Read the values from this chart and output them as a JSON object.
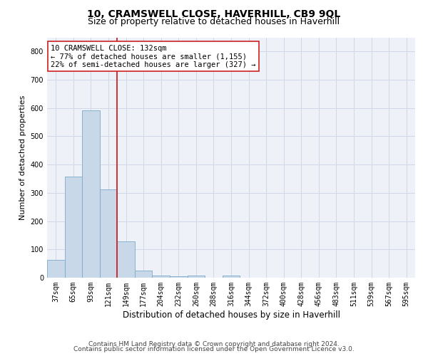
{
  "title": "10, CRAMSWELL CLOSE, HAVERHILL, CB9 9QL",
  "subtitle": "Size of property relative to detached houses in Haverhill",
  "xlabel": "Distribution of detached houses by size in Haverhill",
  "ylabel": "Number of detached properties",
  "footer_line1": "Contains HM Land Registry data © Crown copyright and database right 2024.",
  "footer_line2": "Contains public sector information licensed under the Open Government Licence v3.0.",
  "categories": [
    "37sqm",
    "65sqm",
    "93sqm",
    "121sqm",
    "149sqm",
    "177sqm",
    "204sqm",
    "232sqm",
    "260sqm",
    "288sqm",
    "316sqm",
    "344sqm",
    "372sqm",
    "400sqm",
    "428sqm",
    "456sqm",
    "483sqm",
    "511sqm",
    "539sqm",
    "567sqm",
    "595sqm"
  ],
  "values": [
    63,
    358,
    593,
    313,
    128,
    25,
    8,
    5,
    8,
    0,
    8,
    0,
    0,
    0,
    0,
    0,
    0,
    0,
    0,
    0,
    0
  ],
  "bar_color": "#c8d8e8",
  "bar_edge_color": "#7aaac8",
  "grid_color": "#d0d8e8",
  "background_color": "#eef2f8",
  "vline_x": 3.5,
  "vline_color": "#cc2222",
  "annotation_line1": "10 CRAMSWELL CLOSE: 132sqm",
  "annotation_line2": "← 77% of detached houses are smaller (1,155)",
  "annotation_line3": "22% of semi-detached houses are larger (327) →",
  "annotation_box_color": "#ffffff",
  "annotation_box_edge": "#cc2222",
  "ylim": [
    0,
    850
  ],
  "yticks": [
    0,
    100,
    200,
    300,
    400,
    500,
    600,
    700,
    800
  ],
  "title_fontsize": 10,
  "subtitle_fontsize": 9,
  "annotation_fontsize": 7.5,
  "axis_fontsize": 7,
  "xlabel_fontsize": 8.5,
  "ylabel_fontsize": 8,
  "footer_fontsize": 6.5
}
